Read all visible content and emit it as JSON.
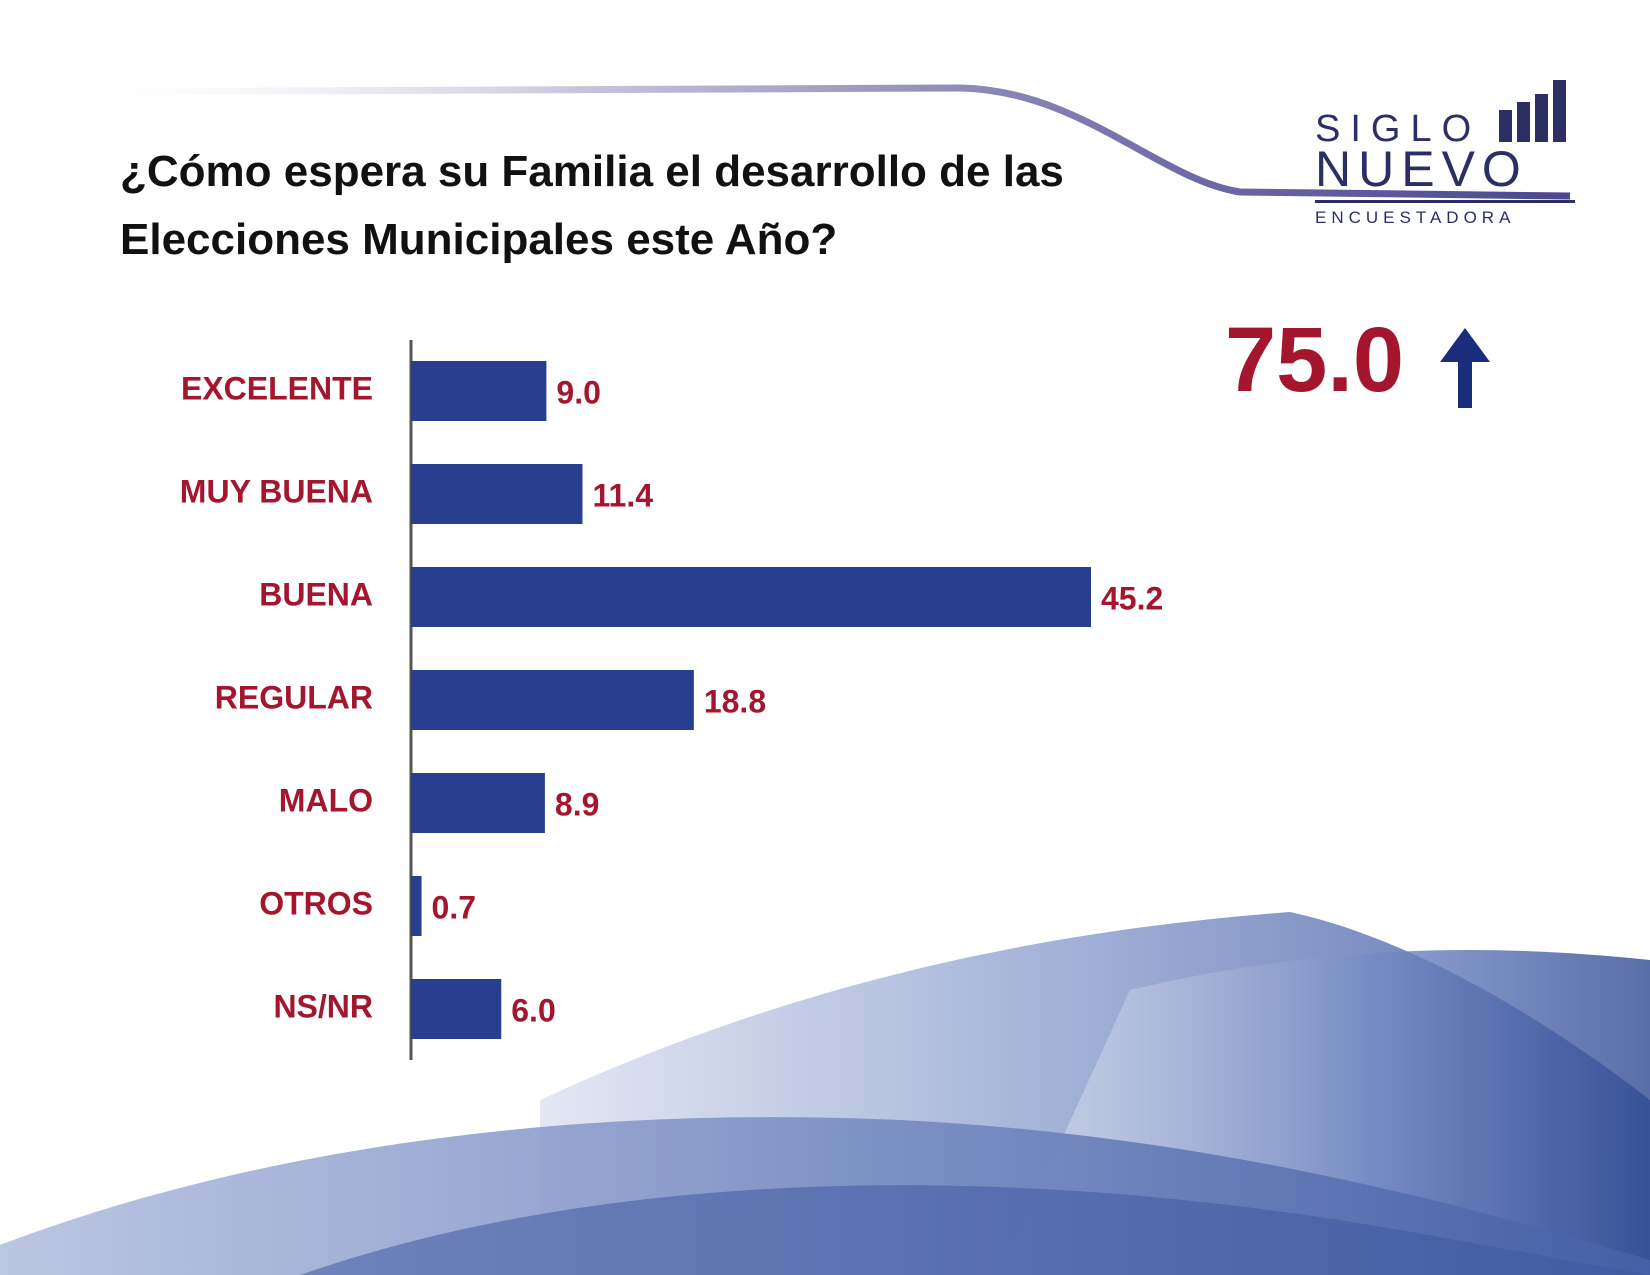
{
  "title": "¿Cómo espera su Familia el desarrollo de las Elecciones Municipales este Año?",
  "logo": {
    "line1": "SIGLO",
    "line2": "NUEVO",
    "line3": "ENCUESTADORA"
  },
  "summary": {
    "value": "75.0",
    "arrow_icon": "arrow-up-icon"
  },
  "colors": {
    "bar": "#283f8f",
    "label": "#a3162e",
    "arrow": "#1a2d7c"
  },
  "chart_data": {
    "type": "bar",
    "orientation": "horizontal",
    "categories": [
      "EXCELENTE",
      "MUY BUENA",
      "BUENA",
      "REGULAR",
      "MALO",
      "OTROS",
      "NS/NR"
    ],
    "values": [
      9.0,
      11.4,
      45.2,
      18.8,
      8.9,
      0.7,
      6.0
    ],
    "value_labels": [
      "9.0",
      "11.4",
      "45.2",
      "18.8",
      "8.9",
      "0.7",
      "6.0"
    ],
    "xlim": [
      0,
      50
    ],
    "grid": false,
    "legend": "none"
  }
}
